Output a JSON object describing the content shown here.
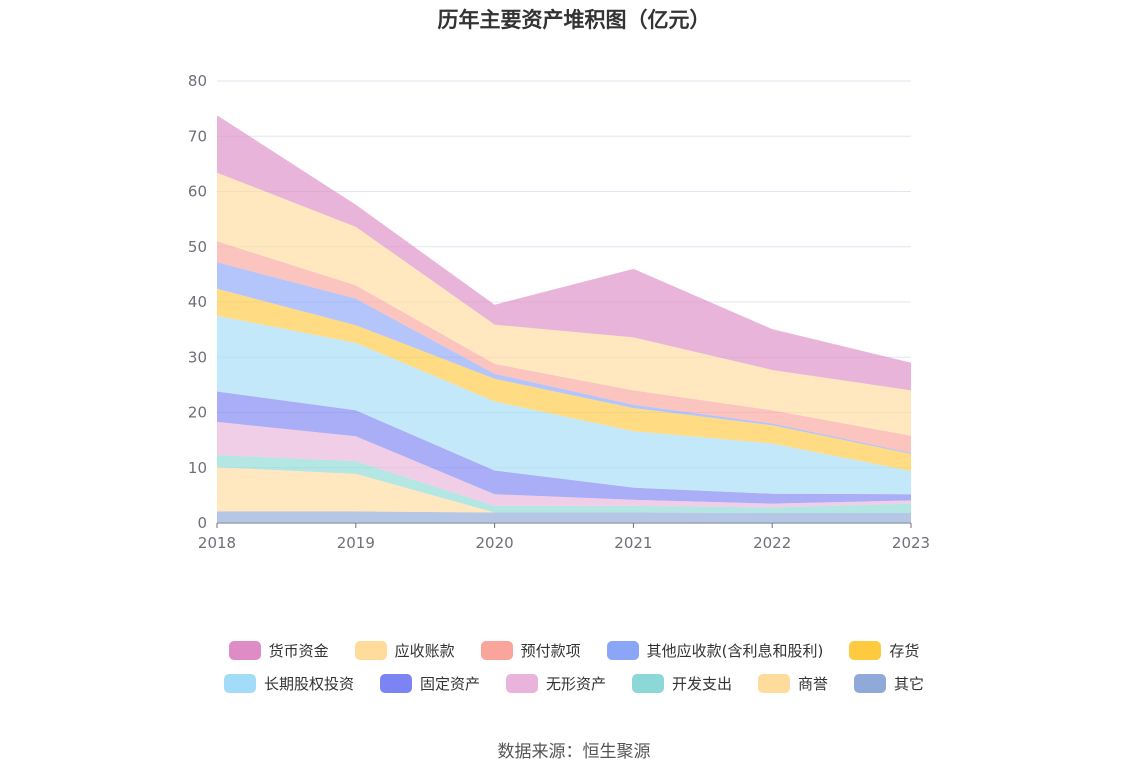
{
  "chart_data": {
    "type": "area",
    "stacked": true,
    "title": "历年主要资产堆积图（亿元）",
    "x": [
      "2018",
      "2019",
      "2020",
      "2021",
      "2022",
      "2023"
    ],
    "y_ticks": [
      "0",
      "10",
      "20",
      "30",
      "40",
      "50",
      "60",
      "70",
      "80"
    ],
    "ylim": [
      0,
      80
    ],
    "grid": true,
    "legend_position": "bottom",
    "series": [
      {
        "name": "其它",
        "color": "#8fa9d9",
        "values": [
          2.1,
          2.1,
          1.9,
          1.9,
          1.8,
          1.8
        ]
      },
      {
        "name": "商誉",
        "color": "#ffdb9c",
        "values": [
          8.0,
          6.8,
          0,
          0,
          0,
          0
        ]
      },
      {
        "name": "开发支出",
        "color": "#8cd8d6",
        "values": [
          2.2,
          2.3,
          1.2,
          1.2,
          1.0,
          1.7
        ]
      },
      {
        "name": "无形资产",
        "color": "#eab3dc",
        "values": [
          6.0,
          4.5,
          2.1,
          1.1,
          0.7,
          0.6
        ]
      },
      {
        "name": "固定资产",
        "color": "#7c83f2",
        "values": [
          5.5,
          4.7,
          4.3,
          2.2,
          1.8,
          1.1
        ]
      },
      {
        "name": "长期股权投资",
        "color": "#a3dcf8",
        "values": [
          13.7,
          12.2,
          12.5,
          10.2,
          9.1,
          4.2
        ]
      },
      {
        "name": "存货",
        "color": "#ffc940",
        "values": [
          4.9,
          3.2,
          4.1,
          4.2,
          3.3,
          3.1
        ]
      },
      {
        "name": "其他应收款(含利息和股利)",
        "color": "#8ba6f7",
        "values": [
          4.8,
          4.8,
          0.9,
          0.6,
          0.3,
          0.2
        ]
      },
      {
        "name": "预付款项",
        "color": "#f9a59c",
        "values": [
          3.8,
          2.4,
          1.8,
          2.6,
          2.4,
          3.1
        ]
      },
      {
        "name": "应收账款",
        "color": "#ffdb9c",
        "values": [
          12.4,
          10.6,
          7.1,
          9.6,
          7.3,
          8.2
        ]
      },
      {
        "name": "货币资金",
        "color": "#dd8cc5",
        "values": [
          10.4,
          4.0,
          3.6,
          12.4,
          7.4,
          5.0
        ]
      }
    ],
    "legend_order": [
      "货币资金",
      "应收账款",
      "预付款项",
      "其他应收款(含利息和股利)",
      "存货",
      "长期股权投资",
      "固定资产",
      "无形资产",
      "开发支出",
      "商誉",
      "其它"
    ]
  },
  "source": "数据来源：恒生聚源"
}
